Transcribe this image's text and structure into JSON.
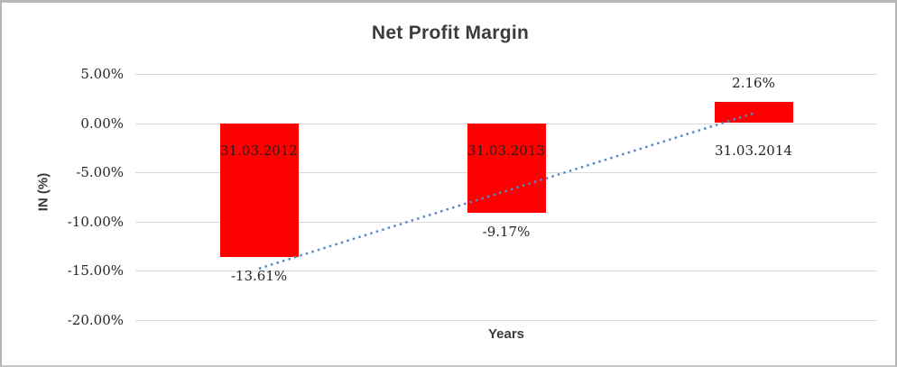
{
  "chart_data": {
    "type": "bar",
    "title": "Net Profit Margin",
    "xlabel": "Years",
    "ylabel": "IN (%)",
    "categories": [
      "31.03.2012",
      "31.03.2013",
      "31.03.2014"
    ],
    "values": [
      -13.61,
      -9.17,
      2.16
    ],
    "value_labels": [
      "-13.61%",
      "-9.17%",
      "2.16%"
    ],
    "ylim": [
      -20,
      5
    ],
    "yticks": [
      5,
      0,
      -5,
      -10,
      -15,
      -20
    ],
    "ytick_labels": [
      "5.00%",
      "0.00%",
      "-5.00%",
      "-10.00%",
      "-15.00%",
      "-20.00%"
    ],
    "grid": true,
    "legend": false,
    "bar_color": "#ff0000",
    "trendline": {
      "type": "linear",
      "style": "dotted",
      "color": "#5588cc",
      "y_start": -14.8,
      "y_end": 1.0
    }
  }
}
